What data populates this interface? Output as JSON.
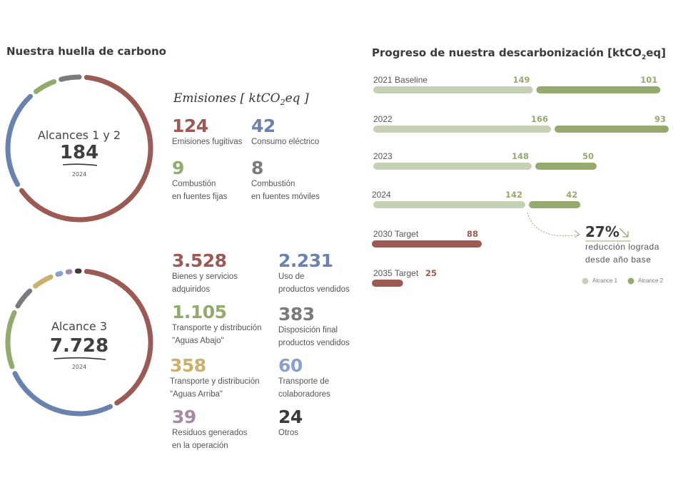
{
  "titles": {
    "footprint": "Nuestra huella de carbono",
    "progress": "Progreso de nuestra descarbonización [ktCO",
    "progress_sub": "2",
    "progress_end": "eq]"
  },
  "emissions_title": {
    "main": "Emisiones [ ktCO",
    "sub": "2",
    "end": "eq ]"
  },
  "colors": {
    "red": "#9c5a55",
    "blue": "#6a83ae",
    "green": "#93aa6d",
    "gray": "#7b7b7b",
    "gold": "#cbaf6c",
    "lightblue": "#8aa1c7",
    "purple": "#a689a8",
    "black": "#3a3a3a",
    "light_green": "#c5d0b4",
    "dark_green": "#94aa6e"
  },
  "chart_data": [
    {
      "type": "pie",
      "title": "Alcances 1 y 2",
      "total": "184",
      "year": "2024",
      "slices": [
        {
          "value": 124,
          "display": "124",
          "label": "Emisiones fugitivas",
          "color": "#9c5a55"
        },
        {
          "value": 42,
          "display": "42",
          "label": "Consumo eléctrico",
          "color": "#6a83ae"
        },
        {
          "value": 9,
          "display": "9",
          "label": "Combustión en fuentes fijas",
          "label_lines": [
            "Combustión",
            "en fuentes fijas"
          ],
          "color": "#93aa6d"
        },
        {
          "value": 8,
          "display": "8",
          "label": "Combustión en fuentes móviles",
          "label_lines": [
            "Combustión",
            "en fuentes móviles"
          ],
          "color": "#7b7b7b"
        }
      ]
    },
    {
      "type": "pie",
      "title": "Alcance 3",
      "total": "7.728",
      "year": "2024",
      "slices": [
        {
          "value": 3528,
          "display": "3.528",
          "label_lines": [
            "Bienes y servicios",
            "adquiridos"
          ],
          "color": "#9c5a55"
        },
        {
          "value": 2231,
          "display": "2.231",
          "label_lines": [
            "Uso de",
            "productos vendidos"
          ],
          "color": "#6a83ae"
        },
        {
          "value": 1105,
          "display": "1.105",
          "label_lines": [
            "Transporte y distribución",
            "\"Aguas Abajo\""
          ],
          "color": "#93aa6d"
        },
        {
          "value": 383,
          "display": "383",
          "label_lines": [
            "Disposición final",
            "productos vendidos"
          ],
          "color": "#7b7b7b"
        },
        {
          "value": 358,
          "display": "358",
          "label_lines": [
            "Transporte y distribución",
            "\"Aguas Arriba\""
          ],
          "color": "#cbaf6c"
        },
        {
          "value": 60,
          "display": "60",
          "label_lines": [
            "Transporte de",
            "colaboradores"
          ],
          "color": "#8aa1c7"
        },
        {
          "value": 39,
          "display": "39",
          "label_lines": [
            "Residuos generados",
            "en la operación"
          ],
          "color": "#a689a8"
        },
        {
          "value": 24,
          "display": "24",
          "label_lines": [
            "Otros"
          ],
          "color": "#3a3a3a"
        }
      ]
    },
    {
      "type": "bar",
      "title": "Progreso de nuestra descarbonización [ktCO2eq]",
      "unit": "ktCO2eq",
      "legend": [
        "Alcance 1",
        "Alcance 2"
      ],
      "legend_position": "bottom-right",
      "rows": [
        {
          "label": "2021 Baseline",
          "alcance1": 149,
          "alcance2": 101
        },
        {
          "label": "2022",
          "alcance1": 166,
          "alcance2": 93
        },
        {
          "label": "2023",
          "alcance1": 148,
          "alcance2": 50
        },
        {
          "label": "2024",
          "alcance1": 142,
          "alcance2": 42
        },
        {
          "label": "2030 Target",
          "target": 88
        },
        {
          "label": "2035 Target",
          "target": 25
        }
      ],
      "annotation": {
        "value": "27%",
        "text_lines": [
          "reducción lograda",
          "desde año base"
        ]
      }
    }
  ]
}
